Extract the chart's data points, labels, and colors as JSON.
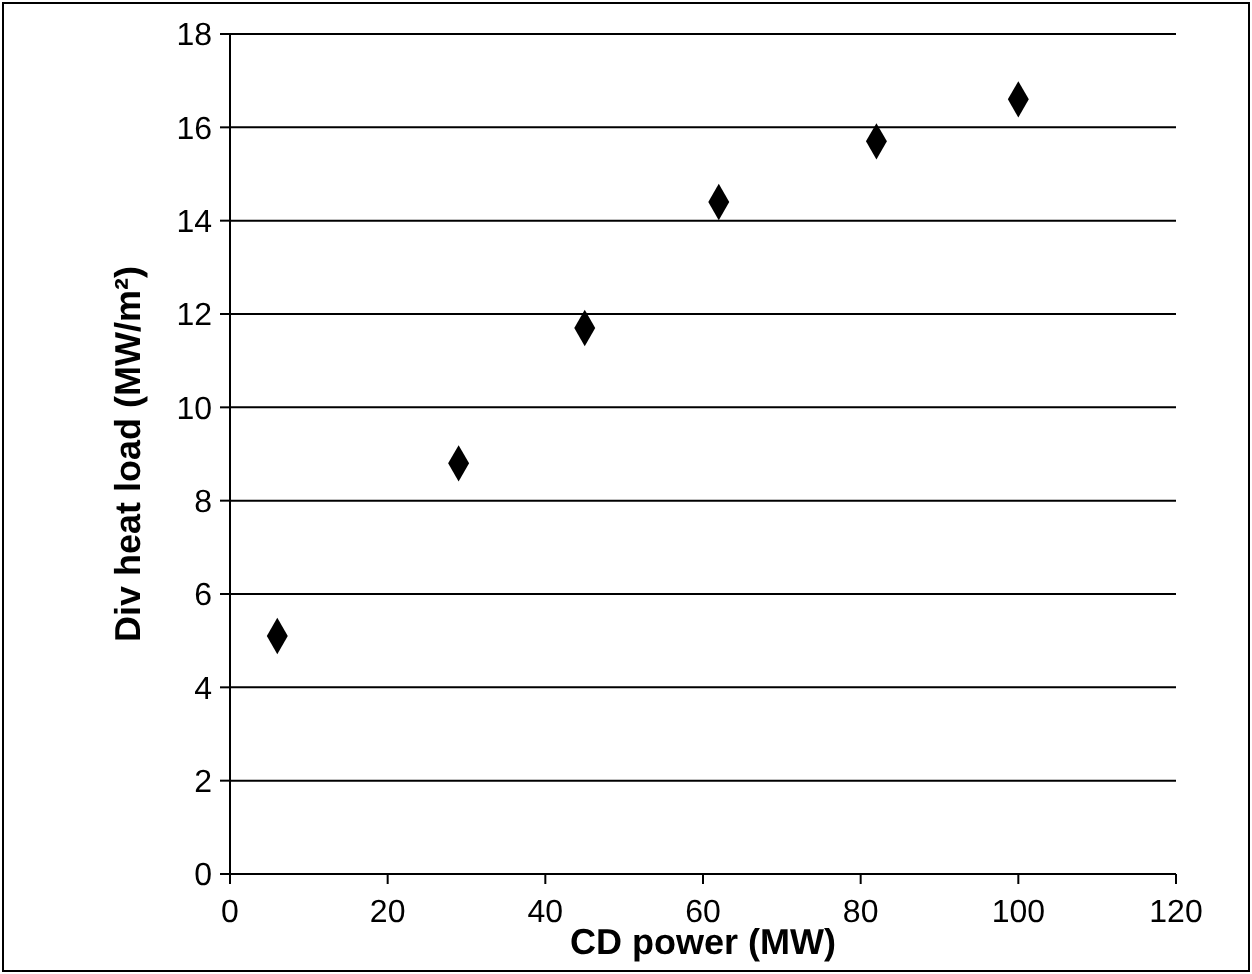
{
  "chart_data": {
    "type": "scatter",
    "xlabel": "CD power (MW)",
    "ylabel": "Div heat load (MW/m²)",
    "x": [
      6,
      29,
      45,
      62,
      82,
      100
    ],
    "series": [
      {
        "color": "#000000",
        "values": [
          5.1,
          8.8,
          11.7,
          14.4,
          15.7,
          16.6
        ]
      }
    ],
    "xlim": [
      0,
      120
    ],
    "xticks": [
      0,
      20,
      40,
      60,
      80,
      100,
      120
    ],
    "ylim": [
      0,
      18
    ],
    "yticks": [
      0,
      2,
      4,
      6,
      8,
      10,
      12,
      14,
      16,
      18
    ],
    "grid": "y",
    "marker": "diamond"
  }
}
